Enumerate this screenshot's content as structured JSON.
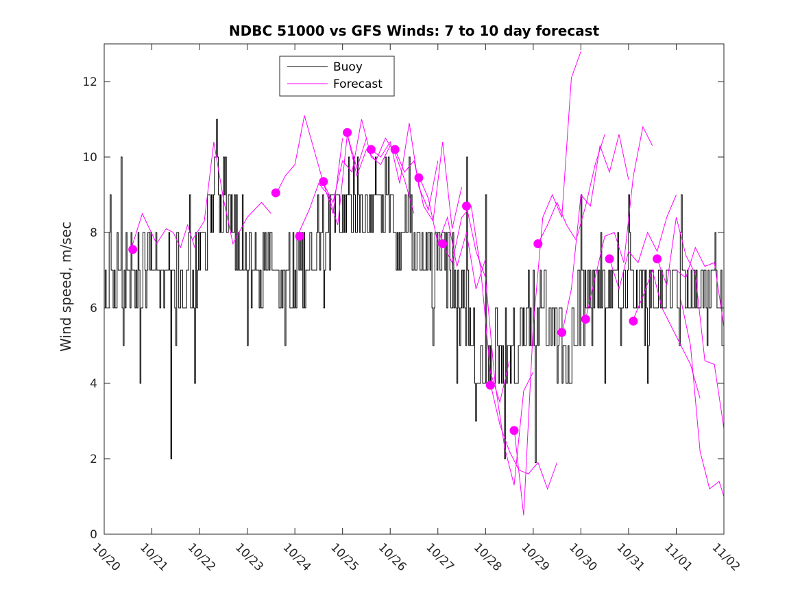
{
  "chart_data": {
    "type": "line",
    "title": "NDBC 51000 vs GFS Winds: 7 to 10 day forecast",
    "xlabel": "",
    "ylabel": "Wind speed, m/sec",
    "xlim": [
      0,
      13
    ],
    "ylim": [
      0,
      13
    ],
    "x_tick_labels": [
      "10/20",
      "10/21",
      "10/22",
      "10/23",
      "10/24",
      "10/25",
      "10/26",
      "10/27",
      "10/28",
      "10/29",
      "10/30",
      "10/31",
      "11/01",
      "11/02"
    ],
    "y_ticks": [
      0,
      2,
      4,
      6,
      8,
      10,
      12
    ],
    "legend": {
      "position": "top-center",
      "entries": [
        "Buoy",
        "Forecast"
      ]
    },
    "colors": {
      "buoy": "#000000",
      "forecast": "#ff00ff",
      "axes": "#262626"
    },
    "buoy_anchor_days": [
      0,
      0.25,
      0.5,
      0.75,
      1.0,
      1.25,
      1.5,
      1.75,
      2.0,
      2.15,
      2.35,
      2.5,
      2.75,
      3.0,
      3.25,
      3.5,
      3.75,
      4.0,
      4.25,
      4.5,
      4.75,
      5.0,
      5.25,
      5.5,
      5.75,
      6.0,
      6.25,
      6.5,
      6.75,
      7.0,
      7.25,
      7.5,
      7.75,
      8.0,
      8.25,
      8.5,
      8.75,
      9.0,
      9.25,
      9.5,
      9.75,
      10.0,
      10.25,
      10.5,
      10.75,
      11.0,
      11.25,
      11.5,
      11.75,
      12.0,
      12.25,
      12.5,
      12.75,
      13.0
    ],
    "buoy_anchor_values": [
      7,
      7,
      6.5,
      7,
      7,
      7,
      7,
      6.5,
      7,
      8,
      9.5,
      9,
      8,
      7.5,
      7,
      7.5,
      6.5,
      7,
      7.5,
      8,
      8.5,
      8.5,
      9,
      8.5,
      9,
      8.5,
      8.5,
      8,
      7.5,
      7,
      7,
      6,
      5,
      4,
      5,
      5,
      5,
      6,
      6,
      5,
      4.5,
      6.5,
      6.5,
      6.5,
      6.5,
      6.5,
      6.5,
      6.5,
      6.5,
      6.5,
      6.5,
      6.5,
      6.5,
      6.5
    ],
    "buoy_extremes": [
      {
        "day": 0.12,
        "value": 9
      },
      {
        "day": 0.35,
        "value": 10
      },
      {
        "day": 0.4,
        "value": 5
      },
      {
        "day": 0.75,
        "value": 4
      },
      {
        "day": 1.4,
        "value": 2
      },
      {
        "day": 1.5,
        "value": 5
      },
      {
        "day": 1.8,
        "value": 9
      },
      {
        "day": 1.9,
        "value": 4
      },
      {
        "day": 2.35,
        "value": 11
      },
      {
        "day": 3.0,
        "value": 5
      },
      {
        "day": 3.8,
        "value": 5
      },
      {
        "day": 4.6,
        "value": 6
      },
      {
        "day": 6.4,
        "value": 10
      },
      {
        "day": 6.9,
        "value": 5
      },
      {
        "day": 7.4,
        "value": 4
      },
      {
        "day": 7.6,
        "value": 10
      },
      {
        "day": 7.8,
        "value": 3
      },
      {
        "day": 8.0,
        "value": 9
      },
      {
        "day": 8.4,
        "value": 2
      },
      {
        "day": 9.05,
        "value": 1.9
      },
      {
        "day": 9.5,
        "value": 4
      },
      {
        "day": 10.0,
        "value": 9
      },
      {
        "day": 10.5,
        "value": 4
      },
      {
        "day": 11.0,
        "value": 9
      },
      {
        "day": 11.4,
        "value": 4
      },
      {
        "day": 12.1,
        "value": 9
      },
      {
        "day": 12.7,
        "value": 6
      }
    ],
    "forecast_series": [
      {
        "x": [
          0.55,
          0.8,
          1.1,
          1.3,
          1.45,
          1.6,
          1.75,
          1.9
        ],
        "y": [
          7.5,
          8.5,
          7.7,
          8.1,
          8.0,
          7.6,
          8.2,
          7.6
        ]
      },
      {
        "x": [
          1.85,
          2.1,
          2.3,
          2.5,
          2.7,
          3.0,
          3.3,
          3.5
        ],
        "y": [
          7.8,
          8.3,
          10.4,
          8.9,
          7.7,
          8.4,
          8.8,
          8.5
        ]
      },
      {
        "x": [
          3.6,
          3.8,
          4.0,
          4.2,
          4.4,
          4.6,
          4.8,
          5.0
        ],
        "y": [
          9.0,
          9.5,
          9.8,
          11.1,
          10.2,
          9.3,
          8.5,
          10.5
        ]
      },
      {
        "x": [
          4.05,
          4.3,
          4.5,
          4.7,
          4.9,
          5.1,
          5.3,
          5.5
        ],
        "y": [
          7.9,
          8.6,
          9.3,
          9.0,
          8.2,
          10.6,
          9.7,
          10.5
        ]
      },
      {
        "x": [
          4.6,
          4.8,
          5.0,
          5.2,
          5.4,
          5.6,
          5.8,
          6.0
        ],
        "y": [
          9.3,
          8.8,
          9.9,
          9.6,
          11.0,
          10.0,
          9.8,
          10.3
        ]
      },
      {
        "x": [
          5.1,
          5.3,
          5.5,
          5.7,
          5.9,
          6.1,
          6.3,
          6.5
        ],
        "y": [
          10.6,
          9.5,
          10.2,
          9.9,
          10.5,
          10.1,
          9.4,
          8.5
        ]
      },
      {
        "x": [
          5.6,
          5.8,
          6.0,
          6.2,
          6.4,
          6.6,
          6.8,
          7.0
        ],
        "y": [
          10.2,
          10.0,
          10.4,
          9.3,
          10.9,
          9.2,
          8.6,
          9.9
        ]
      },
      {
        "x": [
          6.1,
          6.3,
          6.5,
          6.7,
          6.9,
          7.1,
          7.3,
          7.5
        ],
        "y": [
          10.2,
          9.6,
          9.9,
          8.7,
          8.3,
          10.4,
          8.1,
          9.2
        ]
      },
      {
        "x": [
          6.6,
          6.8,
          7.0,
          7.2,
          7.4,
          7.6,
          7.8,
          8.0
        ],
        "y": [
          9.5,
          8.9,
          7.7,
          8.4,
          7.1,
          8.0,
          6.5,
          7.3
        ]
      },
      {
        "x": [
          7.1,
          7.3,
          7.5,
          7.7,
          7.9,
          8.1,
          8.3,
          8.5
        ],
        "y": [
          7.7,
          7.2,
          8.4,
          8.7,
          7.0,
          4.3,
          3.5,
          4.6
        ]
      },
      {
        "x": [
          7.6,
          7.8,
          8.0,
          8.2,
          8.4,
          8.6,
          8.8,
          9.0
        ],
        "y": [
          8.7,
          7.5,
          6.8,
          4.0,
          2.3,
          1.3,
          3.8,
          4.3
        ]
      },
      {
        "x": [
          8.1,
          8.3,
          8.5,
          8.7,
          8.9,
          9.1,
          9.3,
          9.5
        ],
        "y": [
          4.0,
          2.9,
          2.2,
          1.7,
          1.6,
          1.9,
          1.2,
          1.9
        ]
      },
      {
        "x": [
          8.6,
          8.8,
          9.0,
          9.2,
          9.4,
          9.6,
          9.8,
          10.0
        ],
        "y": [
          2.8,
          0.5,
          5.5,
          8.4,
          9.0,
          8.4,
          12.1,
          12.8
        ]
      },
      {
        "x": [
          9.1,
          9.3,
          9.5,
          9.7,
          9.9,
          10.1,
          10.3,
          10.5
        ],
        "y": [
          7.7,
          8.2,
          8.8,
          8.2,
          7.8,
          8.7,
          9.8,
          10.6
        ]
      },
      {
        "x": [
          9.6,
          9.8,
          10.0,
          10.2,
          10.4,
          10.6,
          10.8,
          11.0
        ],
        "y": [
          5.3,
          6.5,
          9.0,
          8.7,
          10.3,
          9.6,
          10.6,
          9.4
        ]
      },
      {
        "x": [
          10.1,
          10.3,
          10.5,
          10.7,
          10.9,
          11.1,
          11.3,
          11.5
        ],
        "y": [
          5.7,
          6.8,
          7.9,
          8.0,
          7.2,
          9.5,
          10.8,
          10.3
        ]
      },
      {
        "x": [
          10.6,
          10.8,
          11.0,
          11.2,
          11.4,
          11.6,
          11.8,
          12.0
        ],
        "y": [
          7.3,
          6.5,
          7.5,
          7.2,
          8.0,
          7.5,
          8.4,
          9.0
        ]
      },
      {
        "x": [
          11.1,
          11.3,
          11.5,
          11.7,
          11.9,
          12.1,
          12.3,
          12.5
        ],
        "y": [
          5.7,
          6.3,
          7.0,
          6.0,
          5.5,
          5.0,
          4.5,
          3.6
        ]
      },
      {
        "x": [
          11.6,
          11.8,
          12.0,
          12.2,
          12.4,
          12.6,
          12.8,
          13.0
        ],
        "y": [
          7.3,
          6.6,
          8.4,
          7.4,
          6.9,
          4.6,
          4.5,
          2.8
        ]
      },
      {
        "x": [
          12.0,
          12.2,
          12.4,
          12.6,
          12.8,
          13.0
        ],
        "y": [
          7.0,
          6.8,
          7.6,
          7.1,
          7.2,
          5.5
        ]
      },
      {
        "x": [
          12.1,
          12.3,
          12.5,
          12.7,
          12.9,
          13.0
        ],
        "y": [
          6.2,
          5.0,
          2.2,
          1.2,
          1.4,
          1.0
        ]
      }
    ],
    "forecast_markers": {
      "x": [
        0.6,
        3.6,
        4.1,
        4.6,
        5.1,
        5.6,
        6.1,
        6.6,
        7.1,
        7.6,
        8.1,
        8.6,
        9.1,
        9.6,
        10.1,
        10.6,
        11.1,
        11.6
      ],
      "y": [
        7.55,
        9.05,
        7.9,
        9.35,
        10.65,
        10.2,
        10.2,
        9.45,
        7.7,
        8.7,
        3.95,
        2.75,
        7.7,
        5.35,
        5.7,
        7.3,
        5.65,
        7.3
      ]
    }
  }
}
